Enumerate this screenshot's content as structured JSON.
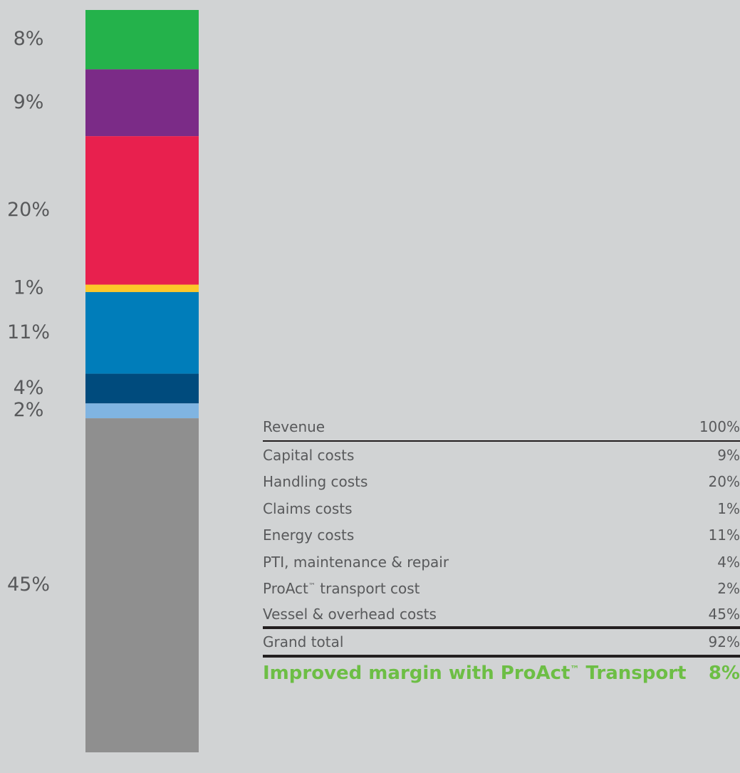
{
  "chart_data": {
    "type": "bar",
    "stacked": true,
    "total_label": "Revenue",
    "segments": [
      {
        "name": "Improved margin with ProAct™ Transport",
        "value": 8,
        "label": "8%",
        "color": "#24b24b"
      },
      {
        "name": "Capital costs",
        "value": 9,
        "label": "9%",
        "color": "#7b2b87"
      },
      {
        "name": "Handling costs",
        "value": 20,
        "label": "20%",
        "color": "#e8204e"
      },
      {
        "name": "Claims costs",
        "value": 1,
        "label": "1%",
        "color": "#fcc72a"
      },
      {
        "name": "Energy costs",
        "value": 11,
        "label": "11%",
        "color": "#007dba"
      },
      {
        "name": "PTI, maintenance & repair",
        "value": 4,
        "label": "4%",
        "color": "#004b7d"
      },
      {
        "name": "ProAct™ transport cost",
        "value": 2,
        "label": "2%",
        "color": "#80b4e1"
      },
      {
        "name": "Vessel & overhead costs",
        "value": 45,
        "label": "45%",
        "color": "#8f8f8f"
      }
    ]
  },
  "table": {
    "header": {
      "label": "Revenue",
      "value": "100%"
    },
    "rows": [
      {
        "label": "Capital costs",
        "value": "9%"
      },
      {
        "label": "Handling costs",
        "value": "20%"
      },
      {
        "label": "Claims costs",
        "value": "1%"
      },
      {
        "label": "Energy costs",
        "value": "11%"
      },
      {
        "label": "PTI, maintenance & repair",
        "value": "4%"
      },
      {
        "label_pre": "ProAct",
        "label_sup": "™",
        "label_post": " transport cost",
        "value": "2%"
      },
      {
        "label": "Vessel & overhead costs",
        "value": "45%"
      }
    ],
    "total": {
      "label": "Grand total",
      "value": "92%"
    },
    "margin": {
      "label_pre": "Improved margin with ProAct",
      "label_sup": "™",
      "label_post": " Transport",
      "value": "8%"
    }
  }
}
